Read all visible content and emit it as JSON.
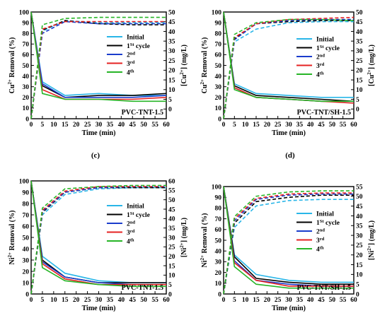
{
  "panel_labels": [
    "(c)",
    "(d)"
  ],
  "chart_data": [
    {
      "type": "line",
      "xlabel": "Time (min)",
      "ylabel_left": {
        "base": "Cu",
        "sup": "2+",
        "rest": " Removal (%)"
      },
      "ylabel_right": {
        "pre": "[Cu",
        "sup": "2+",
        "rest": "] (mg/L)"
      },
      "annotation": "PVC-TNT-1.5",
      "xlim": [
        0,
        60
      ],
      "x_ticks": [
        0,
        5,
        10,
        15,
        20,
        25,
        30,
        35,
        40,
        45,
        50,
        55,
        60
      ],
      "ylim_left": [
        0,
        100
      ],
      "y_ticks_left": [
        0,
        10,
        20,
        30,
        40,
        50,
        60,
        70,
        80,
        90,
        100
      ],
      "ylim_right": [
        -5,
        50
      ],
      "y_ticks_right": [
        0,
        5,
        10,
        15,
        20,
        25,
        30,
        35,
        40,
        45,
        50
      ],
      "legend_position": "right",
      "legend": [
        {
          "text": "Initial",
          "sup": ""
        },
        {
          "text": "1",
          "sup": "St",
          "after": " cycle"
        },
        {
          "text": "2",
          "sup": "nd",
          "after": ""
        },
        {
          "text": "3",
          "sup": "rd",
          "after": ""
        },
        {
          "text": "4",
          "sup": "th",
          "after": ""
        }
      ],
      "x": [
        0,
        5,
        15,
        30,
        45,
        60
      ],
      "series": [
        {
          "color": "#29b6e8",
          "removal": [
            0,
            82,
            92,
            90,
            90,
            90
          ],
          "concentration": [
            50,
            14,
            7,
            8,
            7,
            7
          ]
        },
        {
          "color": "#000000",
          "removal": [
            0,
            83,
            92,
            89,
            88,
            88
          ],
          "concentration": [
            50,
            12,
            6,
            7,
            7,
            8
          ]
        },
        {
          "color": "#1a3ccc",
          "removal": [
            0,
            80,
            91,
            89,
            89,
            89
          ],
          "concentration": [
            50,
            13,
            6,
            6,
            6,
            7
          ]
        },
        {
          "color": "#e52222",
          "removal": [
            0,
            84,
            91,
            91,
            91,
            91
          ],
          "concentration": [
            50,
            10,
            5,
            5,
            5,
            6
          ]
        },
        {
          "color": "#27b527",
          "removal": [
            0,
            88,
            94,
            95,
            95,
            95
          ],
          "concentration": [
            50,
            8,
            5,
            5,
            4,
            4
          ]
        }
      ]
    },
    {
      "type": "line",
      "xlabel": "Time (min)",
      "ylabel_left": {
        "base": "Cu",
        "sup": "2+",
        "rest": " Removal (%)"
      },
      "ylabel_right": {
        "pre": "[Cu",
        "sup": "2+",
        "rest": "] (mg/L)"
      },
      "annotation": "PVC-TNT/SH-1.5",
      "xlim": [
        0,
        60
      ],
      "x_ticks": [
        0,
        5,
        10,
        15,
        20,
        25,
        30,
        35,
        40,
        45,
        50,
        55,
        60
      ],
      "ylim_left": [
        0,
        100
      ],
      "y_ticks_left": [
        0,
        10,
        20,
        30,
        40,
        50,
        60,
        70,
        80,
        90,
        100
      ],
      "ylim_right": [
        -5,
        50
      ],
      "y_ticks_right": [
        0,
        5,
        10,
        15,
        20,
        25,
        30,
        35,
        40,
        45,
        50
      ],
      "legend_position": "right",
      "legend": [
        {
          "text": "Initial",
          "sup": ""
        },
        {
          "text": "1",
          "sup": "St",
          "after": " cycle"
        },
        {
          "text": "2",
          "sup": "nd",
          "after": ""
        },
        {
          "text": "3",
          "sup": "rd",
          "after": ""
        },
        {
          "text": "4",
          "sup": "th",
          "after": ""
        }
      ],
      "x": [
        0,
        5,
        15,
        30,
        45,
        60
      ],
      "series": [
        {
          "color": "#29b6e8",
          "removal": [
            0,
            72,
            84,
            90,
            91,
            91
          ],
          "concentration": [
            50,
            13,
            8,
            7,
            6,
            6
          ]
        },
        {
          "color": "#000000",
          "removal": [
            0,
            75,
            89,
            91,
            92,
            92
          ],
          "concentration": [
            50,
            12,
            7,
            6,
            5,
            4
          ]
        },
        {
          "color": "#1a3ccc",
          "removal": [
            0,
            74,
            89,
            92,
            93,
            93
          ],
          "concentration": [
            50,
            11,
            6,
            5,
            4,
            4
          ]
        },
        {
          "color": "#e52222",
          "removal": [
            0,
            76,
            89,
            93,
            94,
            95
          ],
          "concentration": [
            50,
            11,
            6,
            5,
            4,
            3
          ]
        },
        {
          "color": "#27b527",
          "removal": [
            0,
            79,
            90,
            93,
            93,
            92
          ],
          "concentration": [
            50,
            10,
            6,
            5,
            4,
            4
          ]
        }
      ]
    },
    {
      "type": "line",
      "xlabel": "Time (min)",
      "ylabel_left": {
        "base": "Ni",
        "sup": "2+",
        "rest": " Removal (%)"
      },
      "ylabel_right": {
        "pre": "[Ni",
        "sup": "2+",
        "rest": "] (mg/L)"
      },
      "annotation": "PVC-TNT-1.5",
      "xlim": [
        0,
        60
      ],
      "x_ticks": [
        0,
        5,
        10,
        15,
        20,
        25,
        30,
        35,
        40,
        45,
        50,
        55,
        60
      ],
      "ylim_left": [
        0,
        100
      ],
      "y_ticks_left": [
        0,
        10,
        20,
        30,
        40,
        50,
        60,
        70,
        80,
        90,
        100
      ],
      "ylim_right": [
        0,
        60
      ],
      "y_ticks_right": [
        0,
        5,
        10,
        15,
        20,
        25,
        30,
        35,
        40,
        45,
        50,
        55,
        60
      ],
      "legend_position": "right",
      "legend": [
        {
          "text": "Initial",
          "sup": ""
        },
        {
          "text": "1",
          "sup": "St",
          "after": " cycle"
        },
        {
          "text": "2",
          "sup": "nd",
          "after": ""
        },
        {
          "text": "3",
          "sup": "rd",
          "after": ""
        },
        {
          "text": "4",
          "sup": "th",
          "after": ""
        }
      ],
      "x": [
        0,
        5,
        15,
        30,
        45,
        60
      ],
      "series": [
        {
          "color": "#29b6e8",
          "removal": [
            0,
            70,
            88,
            93,
            94,
            94
          ],
          "concentration": [
            60,
            20,
            11,
            7,
            6,
            6
          ]
        },
        {
          "color": "#000000",
          "removal": [
            0,
            72,
            90,
            94,
            94,
            94
          ],
          "concentration": [
            60,
            18,
            9,
            6,
            6,
            6
          ]
        },
        {
          "color": "#1a3ccc",
          "removal": [
            0,
            73,
            90,
            94,
            95,
            95
          ],
          "concentration": [
            60,
            17,
            9,
            6,
            5,
            5
          ]
        },
        {
          "color": "#e52222",
          "removal": [
            0,
            74,
            91,
            95,
            95,
            95
          ],
          "concentration": [
            60,
            16,
            8,
            5,
            5,
            5
          ]
        },
        {
          "color": "#27b527",
          "removal": [
            0,
            76,
            93,
            95,
            96,
            96
          ],
          "concentration": [
            60,
            14,
            7,
            5,
            4,
            4
          ]
        }
      ]
    },
    {
      "type": "line",
      "xlabel": "Time (min)",
      "ylabel_left": {
        "base": "Ni",
        "sup": "2+",
        "rest": " Removal (%)"
      },
      "ylabel_right": {
        "pre": "[Ni",
        "sup": "2+",
        "rest": "] (mg/L)"
      },
      "annotation": "PVC-TNT/SH-1.5",
      "xlim": [
        0,
        60
      ],
      "x_ticks": [
        0,
        5,
        10,
        15,
        20,
        25,
        30,
        35,
        40,
        45,
        50,
        55,
        60
      ],
      "ylim_left": [
        0,
        100
      ],
      "y_ticks_left": [
        0,
        10,
        20,
        30,
        40,
        50,
        60,
        70,
        80,
        90,
        100
      ],
      "ylim_right": [
        0,
        55
      ],
      "y_ticks_right": [
        0,
        5,
        10,
        15,
        20,
        25,
        30,
        35,
        40,
        45,
        50,
        55
      ],
      "legend_position": "right",
      "legend": [
        {
          "text": "Initial",
          "sup": ""
        },
        {
          "text": "1",
          "sup": "St",
          "after": " cycle"
        },
        {
          "text": "2",
          "sup": "nd",
          "after": ""
        },
        {
          "text": "3",
          "sup": "rd",
          "after": ""
        },
        {
          "text": "4",
          "sup": "th",
          "after": ""
        }
      ],
      "x": [
        0,
        5,
        15,
        30,
        45,
        60
      ],
      "series": [
        {
          "color": "#29b6e8",
          "removal": [
            0,
            62,
            82,
            87,
            88,
            88
          ],
          "concentration": [
            55,
            20,
            10,
            7,
            6,
            6
          ]
        },
        {
          "color": "#000000",
          "removal": [
            0,
            66,
            86,
            90,
            92,
            92
          ],
          "concentration": [
            55,
            19,
            8,
            6,
            5,
            5
          ]
        },
        {
          "color": "#1a3ccc",
          "removal": [
            0,
            68,
            88,
            92,
            93,
            93
          ],
          "concentration": [
            55,
            17,
            7,
            5,
            4,
            4
          ]
        },
        {
          "color": "#e52222",
          "removal": [
            0,
            70,
            89,
            93,
            94,
            94
          ],
          "concentration": [
            55,
            16,
            7,
            4,
            4,
            4
          ]
        },
        {
          "color": "#27b527",
          "removal": [
            0,
            72,
            91,
            95,
            96,
            96
          ],
          "concentration": [
            55,
            14,
            5,
            3,
            3,
            3
          ]
        }
      ]
    }
  ]
}
